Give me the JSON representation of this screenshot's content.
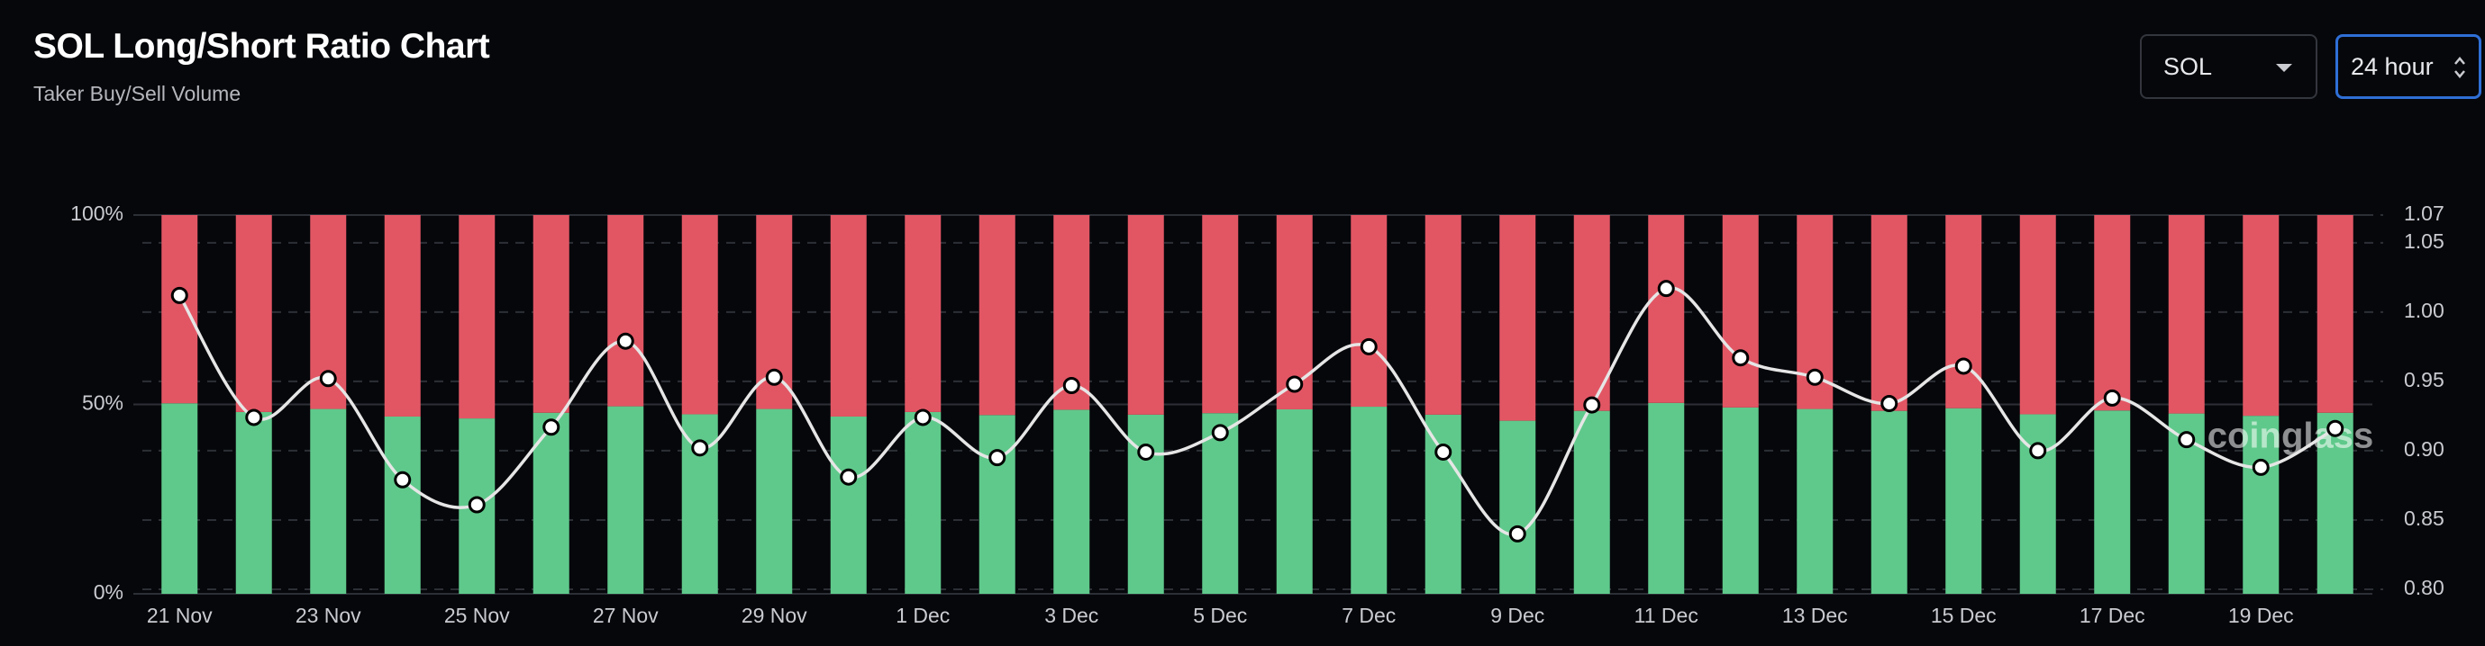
{
  "chart_data": {
    "type": "bar",
    "title": "SOL Long/Short Ratio Chart",
    "subtitle": "Taker Buy/Sell Volume",
    "categories": [
      "21 Nov",
      null,
      "23 Nov",
      null,
      "25 Nov",
      null,
      "27 Nov",
      null,
      "29 Nov",
      null,
      "1 Dec",
      null,
      "3 Dec",
      null,
      "5 Dec",
      null,
      "7 Dec",
      null,
      "9 Dec",
      null,
      "11 Dec",
      null,
      "13 Dec",
      null,
      "15 Dec",
      null,
      "17 Dec",
      null,
      "19 Dec",
      null
    ],
    "series": [
      {
        "type": "bar",
        "color": "#5fc98b",
        "values": [
          50.3,
          48.0,
          48.8,
          46.8,
          46.3,
          47.8,
          49.5,
          47.4,
          48.8,
          46.8,
          48.0,
          47.2,
          48.6,
          47.3,
          47.7,
          48.7,
          49.4,
          47.3,
          45.7,
          48.3,
          50.4,
          49.2,
          48.8,
          48.3,
          49.0,
          47.4,
          48.4,
          47.6,
          47.0,
          47.8
        ]
      },
      {
        "type": "bar",
        "color": "#e25664",
        "values": [
          49.7,
          52.0,
          51.2,
          53.2,
          53.7,
          52.2,
          50.5,
          52.6,
          51.2,
          53.2,
          52.0,
          52.8,
          51.4,
          52.7,
          52.3,
          51.3,
          50.6,
          52.7,
          54.3,
          51.7,
          49.6,
          50.8,
          51.2,
          51.7,
          51.0,
          52.6,
          51.6,
          52.4,
          53.0,
          52.2
        ]
      },
      {
        "type": "line",
        "axis": "y2",
        "color": "#e6e6e6",
        "values": [
          1.012,
          0.924,
          0.952,
          0.879,
          0.861,
          0.917,
          0.979,
          0.902,
          0.953,
          0.881,
          0.924,
          0.895,
          0.947,
          0.899,
          0.913,
          0.948,
          0.975,
          0.899,
          0.84,
          0.933,
          1.017,
          0.967,
          0.953,
          0.934,
          0.961,
          0.9,
          0.938,
          0.908,
          0.888,
          0.916
        ]
      }
    ],
    "ylim": [
      0,
      100
    ],
    "yticks": [
      {
        "value": 0,
        "label": "0%"
      },
      {
        "value": 50,
        "label": "50%"
      },
      {
        "value": 100,
        "label": "100%"
      }
    ],
    "y2lim": [
      0.8,
      1.07
    ],
    "y2ticks": [
      {
        "value": 0.8,
        "label": "0.80"
      },
      0.85,
      {
        "value": 0.9,
        "label": "0.90"
      },
      0.95,
      {
        "value": 1,
        "label": "1.00"
      },
      1.05,
      1.07
    ],
    "grid": true
  },
  "controls": {
    "symbol": "SOL",
    "interval": "24 hour"
  },
  "watermark": "coinglass"
}
